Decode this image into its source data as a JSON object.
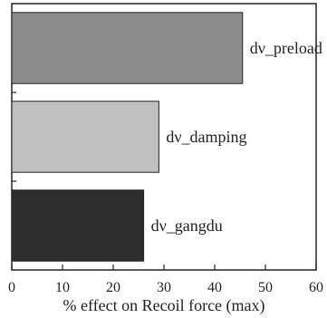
{
  "chart_data": {
    "type": "bar",
    "orientation": "horizontal",
    "categories": [
      "dν_preload",
      "dν_damping",
      "dν_gangdu"
    ],
    "values": [
      45.5,
      29,
      26
    ],
    "bar_colors": [
      "#8c8c8c",
      "#c0c0c0",
      "#2e2e2e"
    ],
    "xlabel": "% effect on Recoil force (max)",
    "xlim": [
      0,
      60
    ],
    "xticks": [
      0,
      10,
      20,
      30,
      40,
      50,
      60
    ],
    "ylabel": "",
    "grid": false,
    "legend": false
  }
}
